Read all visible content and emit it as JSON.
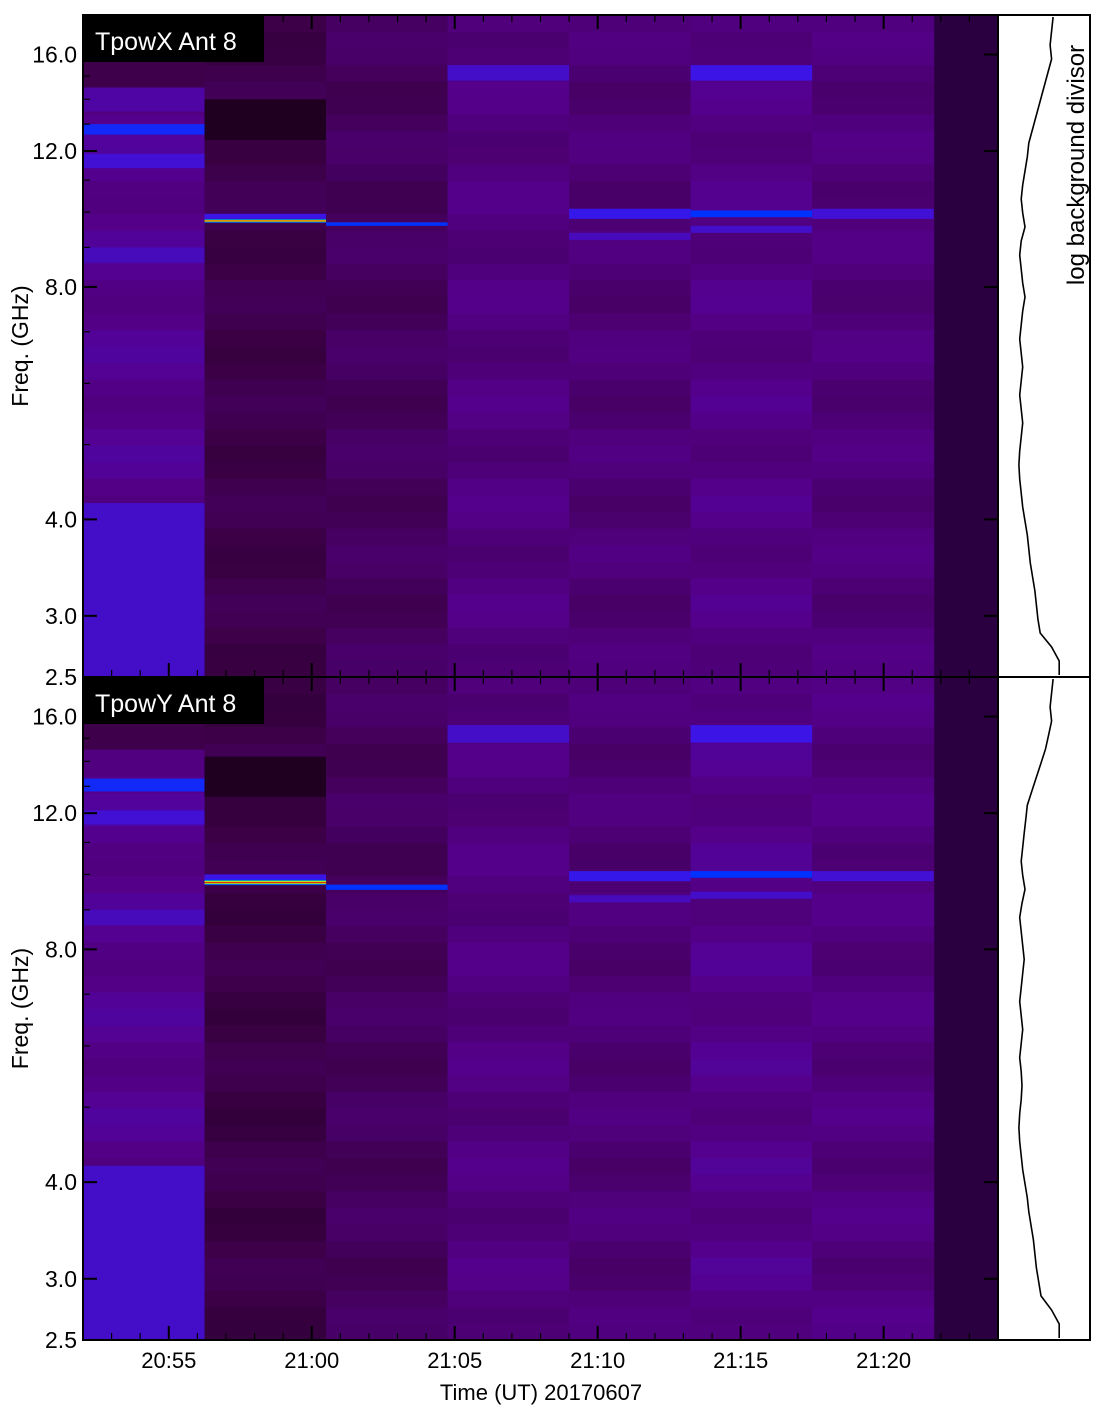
{
  "figure": {
    "xlabel": "Time (UT) 20170607",
    "side_label": "log background divisor"
  },
  "chart_data": [
    {
      "type": "heatmap",
      "title": "TpowX Ant 8",
      "ylabel": "Freq. (GHz)",
      "xlabel": "Time (UT) 20170607",
      "x_ticks": [
        "20:55",
        "21:00",
        "21:05",
        "21:10",
        "21:15",
        "21:20"
      ],
      "y_ticks": [
        "16.0",
        "12.0",
        "8.0",
        "4.0",
        "3.0",
        "2.5"
      ],
      "y_scale": "log",
      "ylim": [
        2.5,
        18.0
      ],
      "time_range_utc": [
        "20:52",
        "21:24"
      ],
      "colormap": "black-purple-blue-green-yellow-red",
      "columns": [
        {
          "t_start": "20:52:00",
          "t_end": "20:56:15",
          "base_level": 0.3
        },
        {
          "t_start": "20:56:15",
          "t_end": "21:00:30",
          "base_level": 0.16
        },
        {
          "t_start": "21:00:30",
          "t_end": "21:04:45",
          "base_level": 0.2
        },
        {
          "t_start": "21:04:45",
          "t_end": "21:09:00",
          "base_level": 0.27
        },
        {
          "t_start": "21:09:00",
          "t_end": "21:13:15",
          "base_level": 0.25
        },
        {
          "t_start": "21:13:15",
          "t_end": "21:17:30",
          "base_level": 0.28
        },
        {
          "t_start": "21:17:30",
          "t_end": "21:21:45",
          "base_level": 0.26
        }
      ],
      "bands": [
        {
          "col": 0,
          "f_lo": 16.8,
          "f_hi": 18.0,
          "level": 0.05
        },
        {
          "col": 0,
          "f_lo": 14.5,
          "f_hi": 16.8,
          "level": 0.16
        },
        {
          "col": 0,
          "f_lo": 13.5,
          "f_hi": 14.5,
          "level": 0.34
        },
        {
          "col": 0,
          "f_lo": 12.6,
          "f_hi": 13.0,
          "level": 0.52
        },
        {
          "col": 0,
          "f_lo": 11.4,
          "f_hi": 11.9,
          "level": 0.42
        },
        {
          "col": 0,
          "f_lo": 8.6,
          "f_hi": 9.0,
          "level": 0.38
        },
        {
          "col": 0,
          "f_lo": 2.5,
          "f_hi": 4.2,
          "level": 0.4
        },
        {
          "col": 1,
          "f_lo": 12.4,
          "f_hi": 14.0,
          "level": 0.04
        },
        {
          "col": 1,
          "f_lo": 9.7,
          "f_hi": 9.8,
          "level": 0.95
        },
        {
          "col": 1,
          "f_lo": 9.8,
          "f_hi": 9.95,
          "level": 0.45
        },
        {
          "col": 2,
          "f_lo": 9.6,
          "f_hi": 9.7,
          "level": 0.55
        },
        {
          "col": 3,
          "f_lo": 14.8,
          "f_hi": 15.5,
          "level": 0.4
        },
        {
          "col": 4,
          "f_lo": 9.8,
          "f_hi": 10.1,
          "level": 0.46
        },
        {
          "col": 4,
          "f_lo": 9.2,
          "f_hi": 9.4,
          "level": 0.38
        },
        {
          "col": 5,
          "f_lo": 14.8,
          "f_hi": 15.5,
          "level": 0.45
        },
        {
          "col": 5,
          "f_lo": 9.85,
          "f_hi": 10.05,
          "level": 0.55
        },
        {
          "col": 5,
          "f_lo": 9.4,
          "f_hi": 9.6,
          "level": 0.4
        },
        {
          "col": 6,
          "f_lo": 9.8,
          "f_hi": 10.1,
          "level": 0.42
        }
      ],
      "background_divisor_profile": [
        0.62,
        0.6,
        0.58,
        0.6,
        0.55,
        0.5,
        0.45,
        0.4,
        0.35,
        0.3,
        0.28,
        0.25,
        0.22,
        0.2,
        0.22,
        0.25,
        0.2,
        0.18,
        0.2,
        0.22,
        0.25,
        0.22,
        0.2,
        0.18,
        0.2,
        0.22,
        0.2,
        0.18,
        0.2,
        0.22,
        0.2,
        0.18,
        0.17,
        0.18,
        0.2,
        0.22,
        0.25,
        0.28,
        0.3,
        0.32,
        0.35,
        0.38,
        0.4,
        0.42,
        0.45,
        0.6,
        0.7,
        0.7
      ]
    },
    {
      "type": "heatmap",
      "title": "TpowY Ant 8",
      "ylabel": "Freq. (GHz)",
      "xlabel": "Time (UT) 20170607",
      "x_ticks": [
        "20:55",
        "21:00",
        "21:05",
        "21:10",
        "21:15",
        "21:20"
      ],
      "y_ticks": [
        "16.0",
        "12.0",
        "8.0",
        "4.0",
        "3.0",
        "2.5"
      ],
      "y_scale": "log",
      "ylim": [
        2.5,
        18.0
      ],
      "time_range_utc": [
        "20:52",
        "21:24"
      ],
      "colormap": "black-purple-blue-green-yellow-red",
      "columns": [
        {
          "t_start": "20:52:00",
          "t_end": "20:56:15",
          "base_level": 0.3
        },
        {
          "t_start": "20:56:15",
          "t_end": "21:00:30",
          "base_level": 0.15
        },
        {
          "t_start": "21:00:30",
          "t_end": "21:04:45",
          "base_level": 0.2
        },
        {
          "t_start": "21:04:45",
          "t_end": "21:09:00",
          "base_level": 0.27
        },
        {
          "t_start": "21:09:00",
          "t_end": "21:13:15",
          "base_level": 0.25
        },
        {
          "t_start": "21:13:15",
          "t_end": "21:17:30",
          "base_level": 0.29
        },
        {
          "t_start": "21:17:30",
          "t_end": "21:21:45",
          "base_level": 0.27
        }
      ],
      "bands": [
        {
          "col": 0,
          "f_lo": 16.8,
          "f_hi": 18.0,
          "level": 0.05
        },
        {
          "col": 0,
          "f_lo": 14.5,
          "f_hi": 16.8,
          "level": 0.16
        },
        {
          "col": 0,
          "f_lo": 12.8,
          "f_hi": 13.3,
          "level": 0.52
        },
        {
          "col": 0,
          "f_lo": 11.6,
          "f_hi": 12.1,
          "level": 0.42
        },
        {
          "col": 0,
          "f_lo": 8.6,
          "f_hi": 9.0,
          "level": 0.38
        },
        {
          "col": 0,
          "f_lo": 2.5,
          "f_hi": 4.2,
          "level": 0.4
        },
        {
          "col": 1,
          "f_lo": 12.6,
          "f_hi": 14.2,
          "level": 0.04
        },
        {
          "col": 1,
          "f_lo": 9.7,
          "f_hi": 9.85,
          "level": 0.95
        },
        {
          "col": 1,
          "f_lo": 9.85,
          "f_hi": 10.0,
          "level": 0.45
        },
        {
          "col": 2,
          "f_lo": 9.55,
          "f_hi": 9.7,
          "level": 0.55
        },
        {
          "col": 3,
          "f_lo": 14.8,
          "f_hi": 15.6,
          "level": 0.4
        },
        {
          "col": 4,
          "f_lo": 9.8,
          "f_hi": 10.1,
          "level": 0.46
        },
        {
          "col": 4,
          "f_lo": 9.2,
          "f_hi": 9.4,
          "level": 0.38
        },
        {
          "col": 5,
          "f_lo": 14.8,
          "f_hi": 15.6,
          "level": 0.45
        },
        {
          "col": 5,
          "f_lo": 9.9,
          "f_hi": 10.1,
          "level": 0.55
        },
        {
          "col": 5,
          "f_lo": 9.3,
          "f_hi": 9.5,
          "level": 0.4
        },
        {
          "col": 6,
          "f_lo": 9.8,
          "f_hi": 10.1,
          "level": 0.42
        }
      ],
      "background_divisor_profile": [
        0.62,
        0.6,
        0.58,
        0.6,
        0.56,
        0.52,
        0.46,
        0.4,
        0.34,
        0.28,
        0.26,
        0.24,
        0.22,
        0.2,
        0.22,
        0.25,
        0.21,
        0.18,
        0.2,
        0.22,
        0.24,
        0.22,
        0.2,
        0.18,
        0.2,
        0.22,
        0.2,
        0.18,
        0.2,
        0.21,
        0.2,
        0.18,
        0.17,
        0.18,
        0.2,
        0.22,
        0.25,
        0.28,
        0.3,
        0.33,
        0.36,
        0.38,
        0.4,
        0.43,
        0.46,
        0.6,
        0.7,
        0.7
      ]
    }
  ]
}
